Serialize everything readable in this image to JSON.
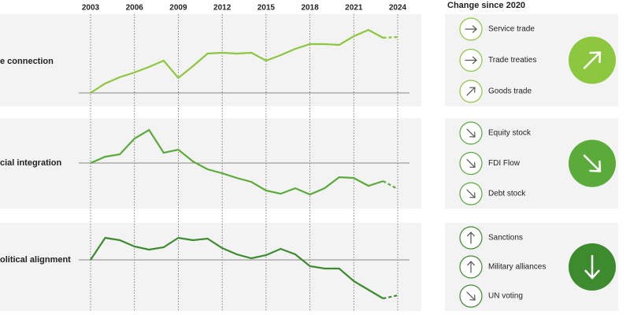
{
  "chart_data": [
    {
      "type": "line",
      "title": "e connection",
      "color": "#8dc63f",
      "dash_last_segment": true,
      "x": [
        2003,
        2004,
        2005,
        2006,
        2007,
        2008,
        2009,
        2010,
        2011,
        2012,
        2013,
        2014,
        2015,
        2016,
        2017,
        2018,
        2019,
        2020,
        2021,
        2022,
        2023,
        2024
      ],
      "values": [
        0,
        12,
        20,
        26,
        33,
        41,
        19,
        34,
        50,
        51,
        50,
        51,
        41,
        48,
        56,
        62,
        62,
        61,
        72,
        80,
        70,
        71
      ],
      "xlim": [
        2003,
        2024
      ],
      "xticks": [
        2003,
        2006,
        2009,
        2012,
        2015,
        2018,
        2021,
        2024
      ],
      "ylim": [
        -17,
        100
      ],
      "grid": true
    },
    {
      "type": "line",
      "title": "cial integration",
      "color": "#5aab3a",
      "dash_last_segment": true,
      "x": [
        2003,
        2004,
        2005,
        2006,
        2007,
        2008,
        2009,
        2010,
        2011,
        2012,
        2013,
        2014,
        2015,
        2016,
        2017,
        2018,
        2019,
        2020,
        2021,
        2022,
        2023,
        2024
      ],
      "values": [
        0,
        8,
        11,
        31,
        42,
        13,
        17,
        2,
        -8,
        -13,
        -19,
        -24,
        -35,
        -39,
        -32,
        -40,
        -32,
        -18,
        -19,
        -29,
        -23,
        -33
      ],
      "xlim": [
        2003,
        2024
      ],
      "ylim": [
        -58,
        57
      ]
    },
    {
      "type": "line",
      "title": "olitical alignment",
      "color": "#3d8b2e",
      "dash_last_segment": true,
      "x": [
        2003,
        2004,
        2005,
        2006,
        2007,
        2008,
        2009,
        2010,
        2011,
        2012,
        2013,
        2014,
        2015,
        2016,
        2017,
        2018,
        2019,
        2020,
        2021,
        2022,
        2023,
        2024
      ],
      "values": [
        0,
        28,
        25,
        17,
        13,
        16,
        28,
        25,
        27,
        15,
        7,
        2,
        6,
        14,
        7,
        -8,
        -11,
        -11,
        -27,
        -38,
        -49,
        -45
      ],
      "xlim": [
        2003,
        2024
      ],
      "ylim": [
        -65,
        47
      ]
    }
  ],
  "change_panel": {
    "title": "Change since 2020",
    "groups": [
      {
        "overall": "up-right",
        "items": [
          {
            "label": "Service trade",
            "arrow": "right"
          },
          {
            "label": "Trade treaties",
            "arrow": "right"
          },
          {
            "label": "Goods trade",
            "arrow": "up-right"
          }
        ]
      },
      {
        "overall": "down-right",
        "items": [
          {
            "label": "Equity stock",
            "arrow": "down-right"
          },
          {
            "label": "FDI Flow",
            "arrow": "down-right"
          },
          {
            "label": "Debt stock",
            "arrow": "down-right"
          }
        ]
      },
      {
        "overall": "down",
        "items": [
          {
            "label": "Sanctions",
            "arrow": "up"
          },
          {
            "label": "Military alliances",
            "arrow": "up"
          },
          {
            "label": "UN voting",
            "arrow": "down-right"
          }
        ]
      }
    ]
  }
}
